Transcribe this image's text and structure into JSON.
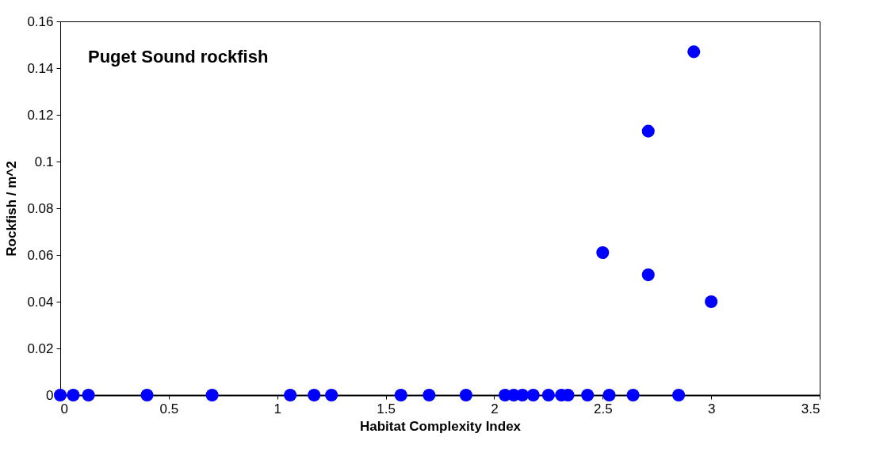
{
  "chart_data": {
    "type": "scatter",
    "xlabel": "Habitat Complexity Index",
    "ylabel": "Rockfish / m^2",
    "annotations": [
      "Puget Sound rockfish"
    ],
    "x": [
      0,
      0.06,
      0.13,
      0.4,
      0.7,
      1.06,
      1.17,
      1.25,
      1.57,
      1.7,
      1.87,
      2.05,
      2.09,
      2.13,
      2.18,
      2.25,
      2.31,
      2.34,
      2.43,
      2.53,
      2.64,
      2.85,
      2.5,
      2.71,
      2.71,
      2.92,
      3.0
    ],
    "series": [
      {
        "color": "#0000ff",
        "values": [
          0,
          0,
          0,
          0,
          0,
          0,
          0,
          0,
          0,
          0,
          0,
          0,
          0,
          0,
          0,
          0,
          0,
          0,
          0,
          0,
          0,
          0,
          0.061,
          0.113,
          0.0515,
          0.147,
          0.04
        ]
      }
    ],
    "xlim": [
      0,
      3.5
    ],
    "xticks": [
      0,
      0.5,
      1,
      1.5,
      2,
      2.5,
      3,
      3.5
    ],
    "ylim": [
      0,
      0.16
    ],
    "yticks": [
      0,
      0.02,
      0.04,
      0.06,
      0.08,
      0.1,
      0.12,
      0.14,
      0.16
    ],
    "grid": false,
    "marker": "circle"
  }
}
